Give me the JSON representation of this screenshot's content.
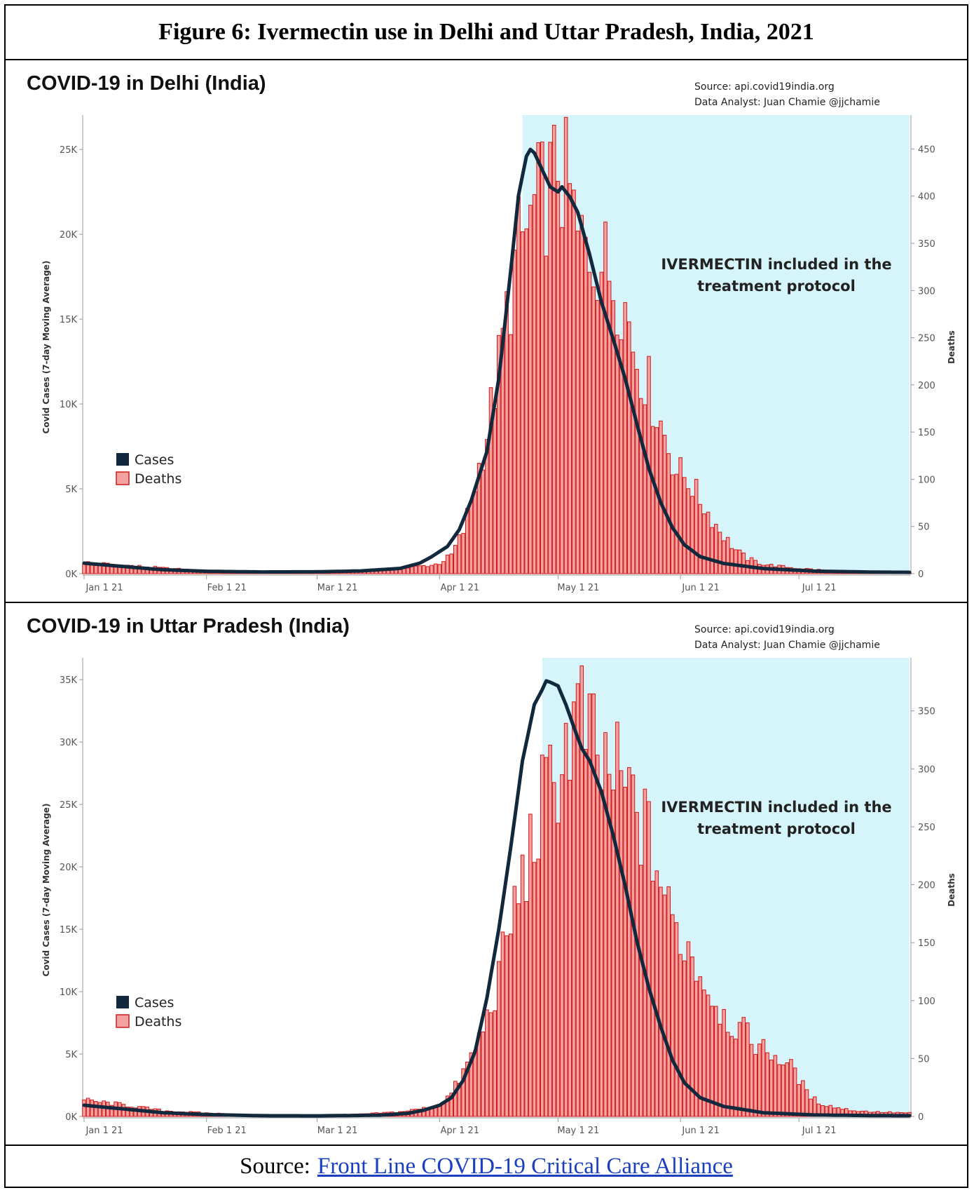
{
  "figure_title": "Figure 6: Ivermectin use in Delhi and Uttar Pradesh, India, 2021",
  "source": {
    "prefix": "Source:",
    "link_text": "Front Line COVID-19 Critical Care Alliance"
  },
  "colors": {
    "cases": "#12283d",
    "deaths_fill": "#f3a1a1",
    "deaths_edge": "#d11a1a",
    "highlight": "#d6f5fa"
  },
  "chart_data": [
    {
      "type": "bar",
      "title": "COVID-19 in Delhi (India)",
      "source_line": "Source: api.covid19india.org",
      "analyst_line": "Data Analyst:  Juan Chamie @jjchamie",
      "ylabel": "Covid Cases (7-day Moving Average)",
      "y2label": "Deaths",
      "annotation": [
        "IVERMECTIN included in the",
        "treatment protocol"
      ],
      "legend": [
        "Cases",
        "Deaths"
      ],
      "x_ticks": [
        "Jan 1 21",
        "Feb 1 21",
        "Mar 1 21",
        "Apr 1 21",
        "May 1 21",
        "Jun 1 21",
        "Jul 1 21"
      ],
      "x_tick_days": [
        0,
        31,
        59,
        90,
        120,
        151,
        181
      ],
      "y_ticks": [
        "0K",
        "5K",
        "10K",
        "15K",
        "20K",
        "25K"
      ],
      "y2_ticks": [
        "0",
        "50",
        "100",
        "150",
        "200",
        "250",
        "300",
        "350",
        "400",
        "450"
      ],
      "ylim": [
        0,
        26700
      ],
      "y2lim": [
        0,
        480
      ],
      "day_range": [
        0,
        209
      ],
      "ivermectin_start_day": 111,
      "cases": [
        [
          0,
          620
        ],
        [
          10,
          420
        ],
        [
          20,
          230
        ],
        [
          31,
          140
        ],
        [
          45,
          100
        ],
        [
          59,
          110
        ],
        [
          70,
          160
        ],
        [
          80,
          310
        ],
        [
          85,
          620
        ],
        [
          88,
          1000
        ],
        [
          92,
          1600
        ],
        [
          95,
          2600
        ],
        [
          98,
          4300
        ],
        [
          102,
          7200
        ],
        [
          105,
          11500
        ],
        [
          108,
          17800
        ],
        [
          110,
          22300
        ],
        [
          112,
          24600
        ],
        [
          113,
          25000
        ],
        [
          114,
          24800
        ],
        [
          116,
          23800
        ],
        [
          118,
          22800
        ],
        [
          120,
          22500
        ],
        [
          121,
          22800
        ],
        [
          123,
          22200
        ],
        [
          125,
          21300
        ],
        [
          128,
          18800
        ],
        [
          131,
          16000
        ],
        [
          134,
          13800
        ],
        [
          137,
          11500
        ],
        [
          140,
          8800
        ],
        [
          143,
          6200
        ],
        [
          146,
          4200
        ],
        [
          149,
          2700
        ],
        [
          152,
          1700
        ],
        [
          156,
          1000
        ],
        [
          162,
          600
        ],
        [
          172,
          300
        ],
        [
          185,
          150
        ],
        [
          200,
          90
        ],
        [
          209,
          80
        ]
      ],
      "deaths_anchors": [
        [
          0,
          12
        ],
        [
          10,
          9
        ],
        [
          20,
          6
        ],
        [
          31,
          3
        ],
        [
          45,
          1
        ],
        [
          59,
          1
        ],
        [
          70,
          2
        ],
        [
          80,
          5
        ],
        [
          85,
          8
        ],
        [
          88,
          9
        ],
        [
          90,
          11
        ],
        [
          93,
          20
        ],
        [
          96,
          45
        ],
        [
          99,
          95
        ],
        [
          102,
          150
        ],
        [
          105,
          220
        ],
        [
          108,
          300
        ],
        [
          110,
          345
        ],
        [
          112,
          360
        ],
        [
          114,
          385
        ],
        [
          116,
          398
        ],
        [
          117,
          405
        ],
        [
          119,
          415
        ],
        [
          120,
          445
        ],
        [
          121,
          420
        ],
        [
          123,
          400
        ],
        [
          125,
          350
        ],
        [
          127,
          345
        ],
        [
          130,
          340
        ],
        [
          133,
          320
        ],
        [
          136,
          300
        ],
        [
          138,
          265
        ],
        [
          140,
          230
        ],
        [
          142,
          210
        ],
        [
          144,
          185
        ],
        [
          146,
          160
        ],
        [
          148,
          135
        ],
        [
          150,
          110
        ],
        [
          153,
          100
        ],
        [
          156,
          78
        ],
        [
          159,
          58
        ],
        [
          162,
          40
        ],
        [
          165,
          25
        ],
        [
          168,
          16
        ],
        [
          172,
          10
        ],
        [
          180,
          6
        ],
        [
          190,
          3
        ],
        [
          200,
          2
        ],
        [
          209,
          1
        ]
      ]
    },
    {
      "type": "bar",
      "title": "COVID-19 in Uttar Pradesh (India)",
      "source_line": "Source: api.covid19india.org",
      "analyst_line": "Data Analyst:  Juan Chamie @jjchamie",
      "ylabel": "Covid Cases (7-day Moving Average)",
      "y2label": "Deaths",
      "annotation": [
        "IVERMECTIN included in the",
        "treatment protocol"
      ],
      "legend": [
        "Cases",
        "Deaths"
      ],
      "x_ticks": [
        "Jan 1 21",
        "Feb 1 21",
        "Mar 1 21",
        "Apr 1 21",
        "May 1 21",
        "Jun 1 21",
        "Jul 1 21"
      ],
      "x_tick_days": [
        0,
        31,
        59,
        90,
        120,
        151,
        181
      ],
      "y_ticks": [
        "0K",
        "5K",
        "10K",
        "15K",
        "20K",
        "25K",
        "30K",
        "35K"
      ],
      "y2_ticks": [
        "0",
        "50",
        "100",
        "150",
        "200",
        "250",
        "300",
        "350"
      ],
      "ylim": [
        0,
        36300
      ],
      "y2lim": [
        0,
        391
      ],
      "day_range": [
        0,
        209
      ],
      "ivermectin_start_day": 116,
      "cases": [
        [
          0,
          900
        ],
        [
          10,
          600
        ],
        [
          20,
          300
        ],
        [
          31,
          150
        ],
        [
          45,
          60
        ],
        [
          59,
          50
        ],
        [
          75,
          100
        ],
        [
          82,
          250
        ],
        [
          86,
          500
        ],
        [
          90,
          900
        ],
        [
          93,
          1500
        ],
        [
          96,
          2900
        ],
        [
          99,
          5200
        ],
        [
          102,
          9500
        ],
        [
          105,
          15000
        ],
        [
          108,
          21500
        ],
        [
          111,
          28500
        ],
        [
          114,
          33000
        ],
        [
          116,
          34200
        ],
        [
          117,
          34900
        ],
        [
          118,
          34800
        ],
        [
          120,
          34500
        ],
        [
          122,
          33000
        ],
        [
          124,
          31200
        ],
        [
          126,
          29500
        ],
        [
          128,
          28500
        ],
        [
          131,
          26000
        ],
        [
          134,
          22500
        ],
        [
          137,
          18500
        ],
        [
          140,
          14000
        ],
        [
          143,
          10300
        ],
        [
          146,
          7200
        ],
        [
          149,
          4500
        ],
        [
          152,
          2700
        ],
        [
          156,
          1500
        ],
        [
          162,
          800
        ],
        [
          172,
          300
        ],
        [
          185,
          120
        ],
        [
          200,
          70
        ],
        [
          209,
          60
        ]
      ],
      "deaths_anchors": [
        [
          0,
          14
        ],
        [
          10,
          10
        ],
        [
          20,
          5
        ],
        [
          31,
          3
        ],
        [
          45,
          1
        ],
        [
          59,
          1
        ],
        [
          70,
          2
        ],
        [
          80,
          4
        ],
        [
          86,
          7
        ],
        [
          90,
          10
        ],
        [
          93,
          20
        ],
        [
          96,
          38
        ],
        [
          99,
          58
        ],
        [
          102,
          85
        ],
        [
          105,
          120
        ],
        [
          108,
          168
        ],
        [
          111,
          205
        ],
        [
          114,
          240
        ],
        [
          116,
          268
        ],
        [
          118,
          282
        ],
        [
          120,
          300
        ],
        [
          122,
          320
        ],
        [
          124,
          340
        ],
        [
          126,
          345
        ],
        [
          128,
          325
        ],
        [
          130,
          300
        ],
        [
          132,
          300
        ],
        [
          134,
          295
        ],
        [
          136,
          285
        ],
        [
          138,
          275
        ],
        [
          140,
          265
        ],
        [
          142,
          245
        ],
        [
          144,
          230
        ],
        [
          146,
          205
        ],
        [
          148,
          175
        ],
        [
          150,
          160
        ],
        [
          152,
          152
        ],
        [
          154,
          140
        ],
        [
          156,
          125
        ],
        [
          158,
          110
        ],
        [
          160,
          100
        ],
        [
          162,
          88
        ],
        [
          164,
          80
        ],
        [
          166,
          75
        ],
        [
          168,
          70
        ],
        [
          170,
          64
        ],
        [
          172,
          58
        ],
        [
          174,
          55
        ],
        [
          176,
          50
        ],
        [
          178,
          45
        ],
        [
          180,
          40
        ],
        [
          183,
          20
        ],
        [
          186,
          12
        ],
        [
          190,
          8
        ],
        [
          195,
          5
        ],
        [
          200,
          4
        ],
        [
          209,
          3
        ]
      ]
    }
  ]
}
